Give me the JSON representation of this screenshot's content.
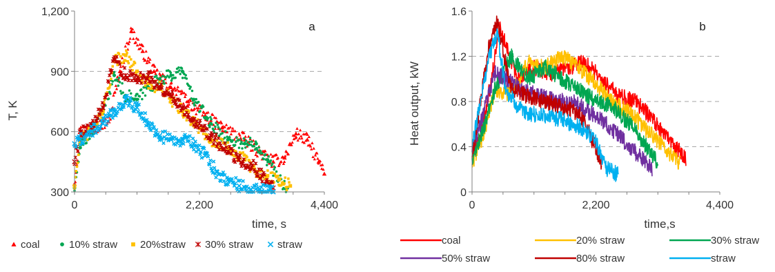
{
  "chart_data": [
    {
      "type": "scatter",
      "panel_label": "a",
      "xlabel": "time, s",
      "ylabel": "T, K",
      "xlim": [
        0,
        4400
      ],
      "ylim": [
        300,
        1200
      ],
      "x_ticks": [
        "0",
        "2,200",
        "4,400"
      ],
      "y_ticks": [
        "300",
        "600",
        "900",
        "1,200"
      ],
      "grid": "horizontal dashed",
      "legend_position": "bottom",
      "series": [
        {
          "name": "coal",
          "color": "#ff0000",
          "marker": "triangle",
          "x": [
            0,
            100,
            300,
            600,
            800,
            1000,
            1200,
            1400,
            1700,
            2000,
            2300,
            2600,
            3000,
            3300,
            3500,
            3700,
            3900,
            4100,
            4300,
            4400
          ],
          "y": [
            340,
            600,
            620,
            650,
            900,
            1100,
            1000,
            900,
            820,
            750,
            680,
            620,
            560,
            490,
            450,
            470,
            590,
            560,
            450,
            390
          ]
        },
        {
          "name": "10% straw",
          "color": "#00a651",
          "marker": "circle",
          "x": [
            0,
            100,
            300,
            500,
            700,
            900,
            1100,
            1300,
            1500,
            1700,
            1900,
            2100,
            2400,
            2700,
            3000,
            3200,
            3400,
            3600,
            3750
          ],
          "y": [
            320,
            520,
            600,
            700,
            880,
            780,
            760,
            820,
            860,
            880,
            900,
            760,
            640,
            560,
            540,
            540,
            460,
            360,
            320
          ]
        },
        {
          "name": "20%straw",
          "color": "#ffc000",
          "marker": "square",
          "x": [
            0,
            100,
            300,
            500,
            700,
            900,
            1100,
            1300,
            1500,
            1700,
            1900,
            2100,
            2400,
            2700,
            3000,
            3200,
            3400,
            3600,
            3800
          ],
          "y": [
            330,
            550,
            610,
            700,
            950,
            980,
            900,
            840,
            820,
            760,
            700,
            650,
            560,
            520,
            460,
            400,
            380,
            360,
            330
          ]
        },
        {
          "name": "30% straw",
          "color": "#c00000",
          "marker": "asterisk",
          "x": [
            0,
            100,
            300,
            500,
            700,
            900,
            1100,
            1300,
            1500,
            1700,
            1900,
            2100,
            2400,
            2700,
            2900,
            3100,
            3300,
            3500
          ],
          "y": [
            450,
            600,
            620,
            720,
            960,
            880,
            860,
            880,
            820,
            780,
            720,
            660,
            580,
            500,
            460,
            440,
            380,
            320
          ]
        },
        {
          "name": "straw",
          "color": "#00b0f0",
          "marker": "x",
          "x": [
            0,
            100,
            300,
            500,
            700,
            900,
            1100,
            1300,
            1500,
            1700,
            1900,
            2100,
            2300,
            2500,
            2700,
            2900,
            3100,
            3300,
            3500
          ],
          "y": [
            540,
            560,
            600,
            640,
            700,
            760,
            720,
            640,
            580,
            560,
            560,
            540,
            480,
            400,
            360,
            330,
            310,
            305,
            300
          ]
        }
      ]
    },
    {
      "type": "line",
      "panel_label": "b",
      "xlabel": "time,s",
      "ylabel": "Heat output, kW",
      "xlim": [
        0,
        4400
      ],
      "ylim": [
        0,
        1.6
      ],
      "x_ticks": [
        "0",
        "2,200",
        "4,400"
      ],
      "y_ticks": [
        "0",
        "0.4",
        "0.8",
        "1.2",
        "1.6"
      ],
      "grid": "horizontal dashed",
      "legend_position": "bottom",
      "series": [
        {
          "name": "coal",
          "color": "#ff0000",
          "x": [
            0,
            200,
            500,
            800,
            1100,
            1400,
            1700,
            2000,
            2300,
            2600,
            2900,
            3200,
            3500,
            3800
          ],
          "y": [
            0.3,
            0.6,
            1.45,
            1.0,
            1.1,
            1.05,
            1.1,
            1.15,
            1.0,
            0.85,
            0.8,
            0.65,
            0.45,
            0.3
          ]
        },
        {
          "name": "20% straw",
          "color": "#ffc000",
          "x": [
            0,
            200,
            400,
            700,
            1000,
            1300,
            1600,
            1900,
            2200,
            2500,
            2800,
            3100,
            3400,
            3700
          ],
          "y": [
            0.25,
            0.5,
            0.9,
            0.85,
            1.15,
            1.1,
            1.2,
            1.1,
            0.95,
            0.8,
            0.7,
            0.55,
            0.4,
            0.25
          ]
        },
        {
          "name": "30% straw",
          "color": "#00a651",
          "x": [
            0,
            200,
            400,
            700,
            1000,
            1300,
            1600,
            1900,
            2200,
            2500,
            2800,
            3100,
            3300
          ],
          "y": [
            0.3,
            0.55,
            0.9,
            1.2,
            1.0,
            1.1,
            1.0,
            0.9,
            0.8,
            0.75,
            0.6,
            0.4,
            0.25
          ]
        },
        {
          "name": "50% straw",
          "color": "#7030a0",
          "x": [
            0,
            200,
            400,
            600,
            900,
            1200,
            1500,
            1800,
            2100,
            2400,
            2700,
            3000,
            3200
          ],
          "y": [
            0.35,
            0.7,
            1.05,
            1.0,
            0.9,
            0.85,
            0.8,
            0.8,
            0.7,
            0.6,
            0.45,
            0.3,
            0.2
          ]
        },
        {
          "name": "80% straw",
          "color": "#c00000",
          "x": [
            0,
            150,
            300,
            450,
            700,
            1000,
            1300,
            1600,
            1900,
            2100,
            2300
          ],
          "y": [
            0.3,
            0.8,
            1.3,
            1.5,
            0.9,
            0.85,
            0.8,
            0.75,
            0.7,
            0.5,
            0.25
          ]
        },
        {
          "name": "straw",
          "color": "#00b0f0",
          "x": [
            0,
            150,
            300,
            450,
            600,
            900,
            1200,
            1500,
            1800,
            2000,
            2200,
            2400,
            2600
          ],
          "y": [
            0.4,
            0.8,
            1.2,
            1.4,
            0.9,
            0.7,
            0.68,
            0.65,
            0.6,
            0.55,
            0.45,
            0.2,
            0.15
          ]
        }
      ]
    }
  ]
}
